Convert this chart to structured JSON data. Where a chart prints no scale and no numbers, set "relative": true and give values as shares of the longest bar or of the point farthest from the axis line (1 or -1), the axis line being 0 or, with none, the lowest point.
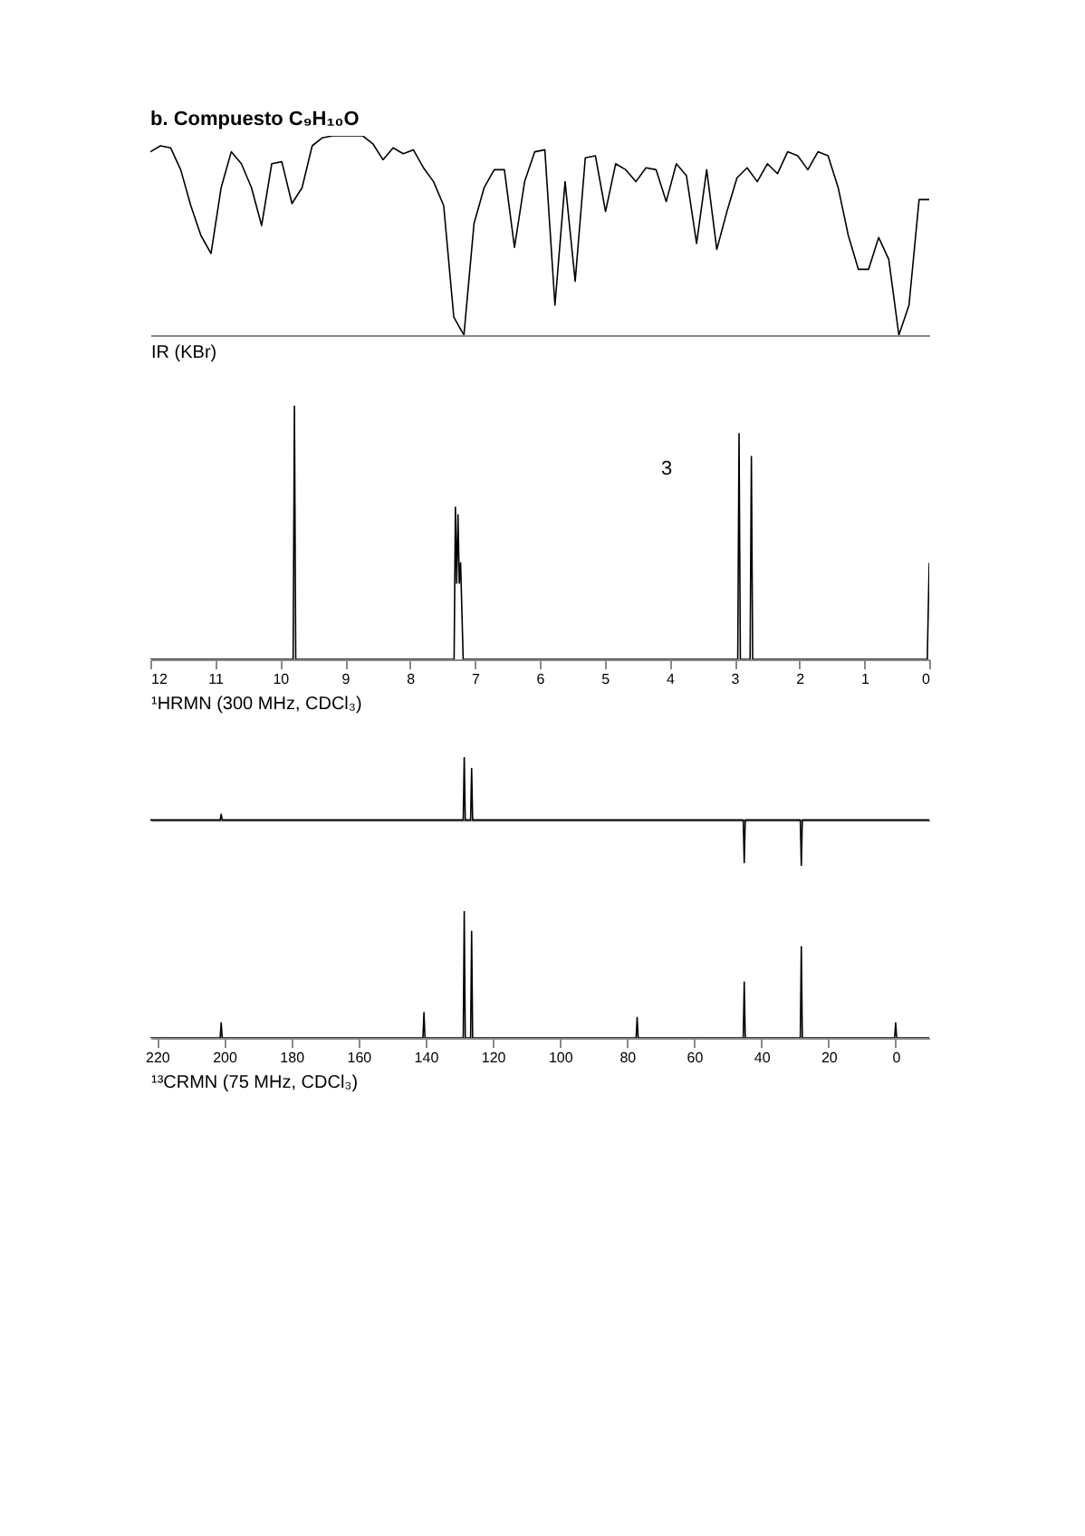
{
  "chart_data": [
    {
      "type": "line",
      "title": "b. Compuesto C₉H₁₀O",
      "xlabel": "IR (KBr)",
      "relative": true,
      "categories": [
        null,
        null,
        null,
        null,
        null,
        null,
        null,
        null,
        null,
        null,
        null,
        null,
        null,
        null,
        null,
        null,
        null,
        null,
        null,
        null,
        null,
        null,
        null,
        null,
        null,
        null,
        null,
        null,
        null,
        null,
        null,
        null,
        null,
        null,
        null,
        null,
        null,
        null,
        null,
        null,
        null,
        null,
        null,
        null,
        null,
        null,
        null,
        null,
        null,
        null,
        null,
        null,
        null,
        null,
        null,
        null,
        null,
        null,
        null,
        null,
        null,
        null,
        null,
        null,
        null,
        null,
        null,
        null,
        null,
        null,
        null,
        null,
        null,
        null,
        null,
        null,
        null,
        null
      ],
      "series": [
        {
          "color": "#000000",
          "values": [
            0.92,
            0.95,
            0.94,
            0.83,
            0.65,
            0.5,
            0.41,
            0.74,
            0.92,
            0.86,
            0.74,
            0.55,
            0.86,
            0.87,
            0.66,
            0.74,
            0.95,
            0.99,
            1.0,
            1.0,
            1.0,
            1.0,
            0.96,
            0.88,
            0.94,
            0.91,
            0.93,
            0.84,
            0.77,
            0.65,
            0.09,
            0.0,
            0.56,
            0.74,
            0.83,
            0.83,
            0.44,
            0.77,
            0.92,
            0.93,
            0.15,
            0.77,
            0.27,
            0.89,
            0.9,
            0.62,
            0.86,
            0.83,
            0.77,
            0.84,
            0.83,
            0.67,
            0.86,
            0.8,
            0.46,
            0.83,
            0.43,
            0.62,
            0.79,
            0.84,
            0.77,
            0.86,
            0.81,
            0.92,
            0.9,
            0.83,
            0.92,
            0.9,
            0.74,
            0.5,
            0.33,
            0.33,
            0.49,
            0.38,
            0.0,
            0.15,
            0.68,
            0.68
          ]
        }
      ],
      "line_style": "solid"
    },
    {
      "type": "line",
      "xlabel": "¹HRMN (300 MHz, CDCl₃)",
      "relative": true,
      "xlim": [
        12,
        0
      ],
      "xticks": [
        12,
        11,
        10,
        9,
        8,
        7,
        6,
        5,
        4,
        3,
        2,
        1,
        0
      ],
      "x": [
        12,
        10.2,
        9.8,
        9.78,
        9.76,
        7.5,
        7.32,
        7.3,
        7.28,
        7.26,
        7.24,
        7.22,
        7.18,
        3.0,
        2.95,
        2.93,
        2.91,
        2.76,
        2.74,
        2.72,
        0.03,
        0
      ],
      "series": [
        {
          "color": "#000000",
          "values": [
            0,
            0,
            0,
            1,
            0,
            0,
            0,
            0.6,
            0.3,
            0.57,
            0.3,
            0.38,
            0,
            0,
            0,
            0.89,
            0,
            0,
            0.8,
            0,
            0,
            0.38
          ]
        }
      ],
      "annotations": [
        "3"
      ],
      "line_style": "solid"
    },
    {
      "type": "line",
      "relative": true,
      "xlim": [
        222,
        -10
      ],
      "xticks": [
        220,
        200,
        180,
        160,
        140,
        120,
        100,
        80,
        60,
        40,
        20,
        0
      ],
      "tick_labels": false,
      "x": [
        222,
        201.2,
        200.9,
        200.6,
        128.8,
        128.5,
        128.2,
        126.6,
        126.3,
        126.0,
        45.4,
        45.1,
        44.8,
        28.4,
        28.1,
        27.8,
        -10
      ],
      "series": [
        {
          "color": "#000000",
          "values": [
            0,
            0,
            0.09,
            0,
            0,
            1,
            0,
            0,
            0.82,
            0,
            0,
            -0.68,
            0,
            0,
            -0.73,
            0,
            0
          ]
        }
      ],
      "line_style": "solid"
    },
    {
      "type": "line",
      "xlabel": "¹³CRMN (75 MHz, CDCl₃)",
      "relative": true,
      "xlim": [
        222,
        -10
      ],
      "xticks": [
        220,
        200,
        180,
        160,
        140,
        120,
        100,
        80,
        60,
        40,
        20,
        0
      ],
      "x": [
        222,
        201.2,
        200.9,
        200.6,
        140.8,
        140.5,
        140.2,
        128.8,
        128.5,
        128.2,
        126.6,
        126.3,
        126.0,
        77.3,
        77.0,
        76.7,
        45.4,
        45.1,
        44.8,
        28.4,
        28.1,
        27.8,
        0.3,
        0,
        -0.3,
        -10
      ],
      "series": [
        {
          "color": "#000000",
          "values": [
            0,
            0,
            0.12,
            0,
            0,
            0.2,
            0,
            0,
            1,
            0,
            0,
            0.84,
            0,
            0,
            0.16,
            0,
            0,
            0.44,
            0,
            0,
            0.72,
            0,
            0,
            0.12,
            0,
            0
          ]
        }
      ],
      "line_style": "solid"
    }
  ]
}
